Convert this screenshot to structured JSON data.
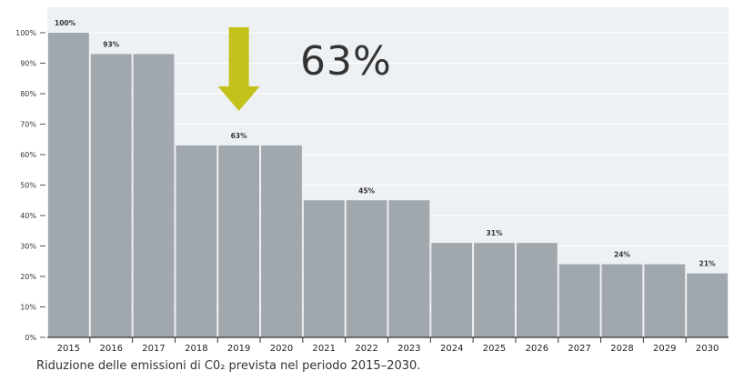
{
  "chart_data": {
    "type": "bar",
    "categories": [
      "2015",
      "2016",
      "2017",
      "2018",
      "2019",
      "2020",
      "2021",
      "2022",
      "2023",
      "2024",
      "2025",
      "2026",
      "2027",
      "2028",
      "2029",
      "2030"
    ],
    "values": [
      100,
      93,
      93,
      63,
      63,
      63,
      45,
      45,
      45,
      31,
      31,
      31,
      24,
      24,
      24,
      21
    ],
    "ylim": [
      0,
      100
    ],
    "yticks": [
      "0%",
      "10%",
      "20%",
      "30%",
      "40%",
      "50%",
      "60%",
      "70%",
      "80%",
      "90%",
      "100%"
    ],
    "data_labels": [
      {
        "category": "2015",
        "label": "100%"
      },
      {
        "category": "2016",
        "label": "93%"
      },
      {
        "category": "2019",
        "label": "63%"
      },
      {
        "category": "2022",
        "label": "45%"
      },
      {
        "category": "2025",
        "label": "31%"
      },
      {
        "category": "2028",
        "label": "24%"
      },
      {
        "category": "2030",
        "label": "21%"
      }
    ],
    "grid": true,
    "colors": {
      "bar": "#a0a7ad",
      "plot_bg": "#eef1f4",
      "grid": "#ffffff",
      "arrow": "#c2c21a"
    }
  },
  "annotation": {
    "text": "63%",
    "arrow_category": "2019"
  },
  "caption": "Riduzione delle emissioni di C0₂ prevista nel periodo 2015–2030."
}
